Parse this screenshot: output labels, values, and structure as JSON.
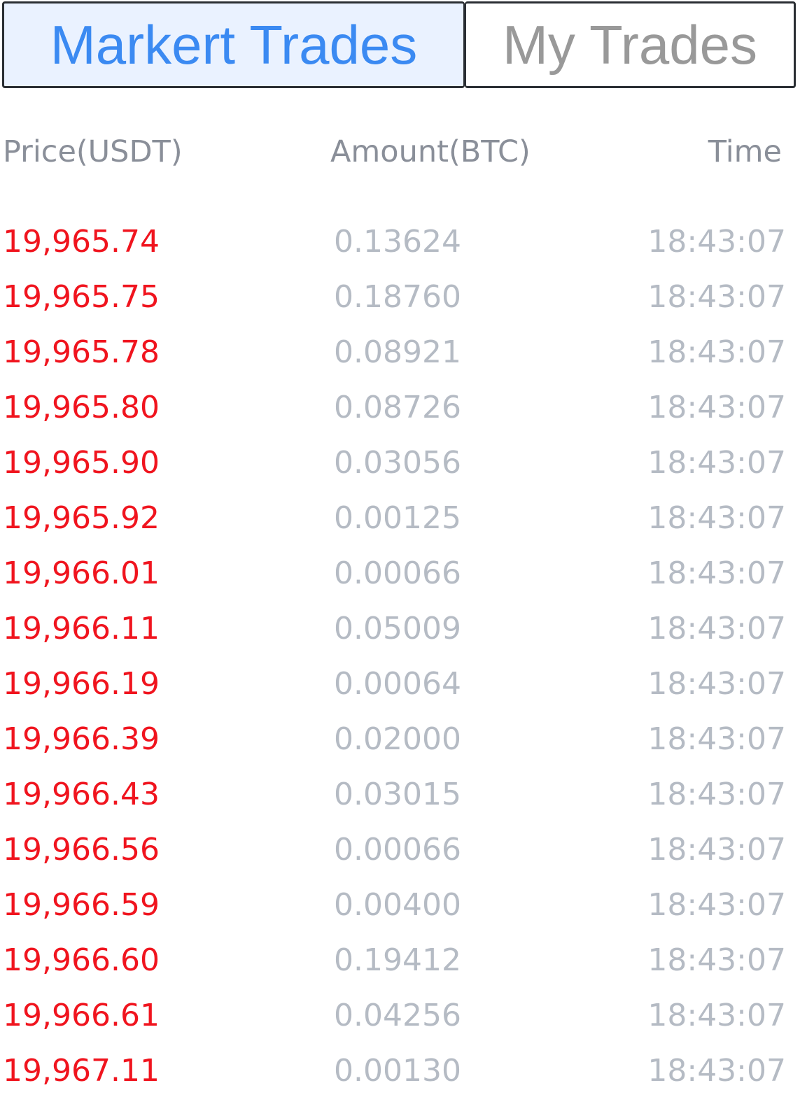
{
  "tabs": {
    "market": "Markert Trades",
    "mine": "My Trades",
    "active": "market"
  },
  "columns": {
    "price": "Price(USDT)",
    "amount": "Amount(BTC)",
    "time": "Time"
  },
  "colors": {
    "sell_price": "#f0141e",
    "muted": "#b5bbc4",
    "active_tab_text": "#3b8af2",
    "active_tab_bg": "#eaf2ff"
  },
  "trades": [
    {
      "price": "19,965.74",
      "amount": "0.13624",
      "time": "18:43:07"
    },
    {
      "price": "19,965.75",
      "amount": "0.18760",
      "time": "18:43:07"
    },
    {
      "price": "19,965.78",
      "amount": "0.08921",
      "time": "18:43:07"
    },
    {
      "price": "19,965.80",
      "amount": "0.08726",
      "time": "18:43:07"
    },
    {
      "price": "19,965.90",
      "amount": "0.03056",
      "time": "18:43:07"
    },
    {
      "price": "19,965.92",
      "amount": "0.00125",
      "time": "18:43:07"
    },
    {
      "price": "19,966.01",
      "amount": "0.00066",
      "time": "18:43:07"
    },
    {
      "price": "19,966.11",
      "amount": "0.05009",
      "time": "18:43:07"
    },
    {
      "price": "19,966.19",
      "amount": "0.00064",
      "time": "18:43:07"
    },
    {
      "price": "19,966.39",
      "amount": "0.02000",
      "time": "18:43:07"
    },
    {
      "price": "19,966.43",
      "amount": "0.03015",
      "time": "18:43:07"
    },
    {
      "price": "19,966.56",
      "amount": "0.00066",
      "time": "18:43:07"
    },
    {
      "price": "19,966.59",
      "amount": "0.00400",
      "time": "18:43:07"
    },
    {
      "price": "19,966.60",
      "amount": "0.19412",
      "time": "18:43:07"
    },
    {
      "price": "19,966.61",
      "amount": "0.04256",
      "time": "18:43:07"
    },
    {
      "price": "19,967.11",
      "amount": "0.00130",
      "time": "18:43:07"
    }
  ]
}
